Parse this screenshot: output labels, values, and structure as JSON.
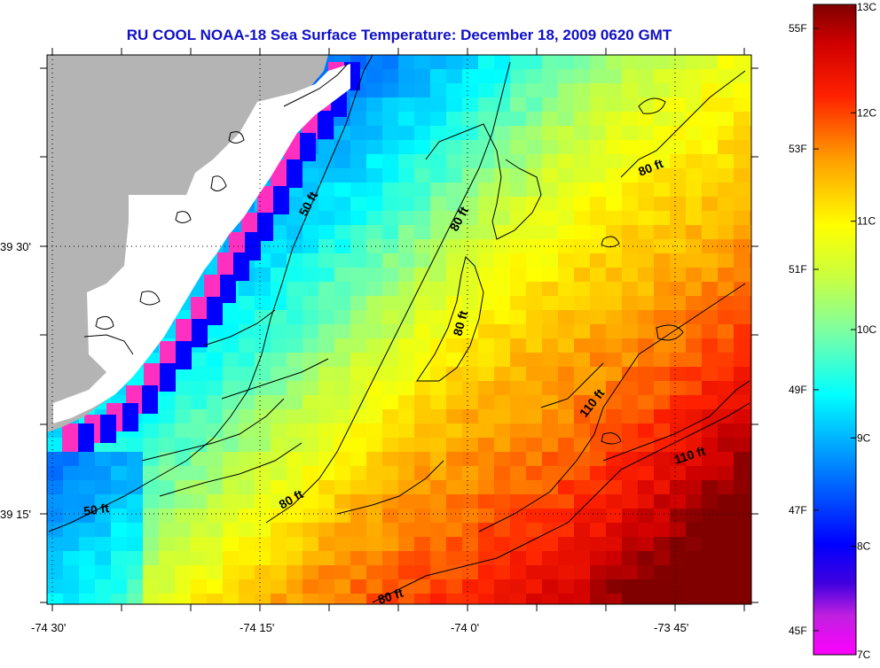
{
  "title": "RU COOL  NOAA-18  Sea Surface Temperature:  December 18, 2009 0620 GMT",
  "axes": {
    "lat_labels": [
      "39 30'",
      "39 15'"
    ],
    "lon_labels": [
      "-74 30'",
      "-74 15'",
      "-74 0'",
      "-73 45'"
    ]
  },
  "contours": {
    "labels": [
      "50 ft",
      "80 ft",
      "80 ft",
      "80 ft",
      "80 ft",
      "110 ft",
      "110 ft",
      "50 ft",
      "80 ft"
    ]
  },
  "colorbar": {
    "celsius_labels": [
      "13C",
      "12C",
      "11C",
      "10C",
      "9C",
      "8C",
      "7C"
    ],
    "fahrenheit_labels": [
      "55F",
      "53F",
      "51F",
      "49F",
      "47F",
      "45F"
    ],
    "celsius_min": 7,
    "celsius_max": 13,
    "fahrenheit_values": [
      55,
      53,
      51,
      49,
      47,
      45
    ]
  },
  "colors": {
    "land": "#b4b4b4",
    "no_data": "#ffffff",
    "title": "#1010c8"
  }
}
